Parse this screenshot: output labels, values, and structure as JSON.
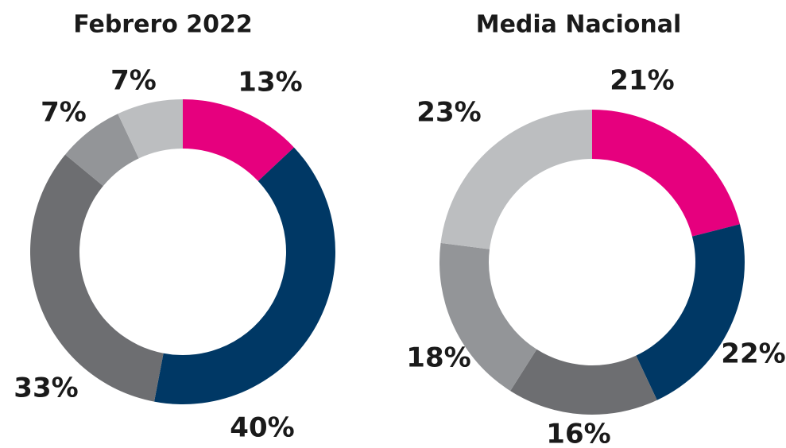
{
  "chart_data": [
    {
      "type": "donut",
      "title": "Febrero 2022",
      "values": [
        13,
        40,
        33,
        7,
        7
      ],
      "value_labels": [
        "13%",
        "40%",
        "33%",
        "7%",
        "7%"
      ],
      "colors": [
        "#e6007e",
        "#003865",
        "#6d6e71",
        "#939598",
        "#bcbec0"
      ]
    },
    {
      "type": "donut",
      "title": "Media Nacional",
      "values": [
        21,
        22,
        16,
        18,
        23
      ],
      "value_labels": [
        "21%",
        "22%",
        "16%",
        "18%",
        "23%"
      ],
      "colors": [
        "#e6007e",
        "#003865",
        "#6d6e71",
        "#939598",
        "#bcbec0"
      ]
    }
  ]
}
